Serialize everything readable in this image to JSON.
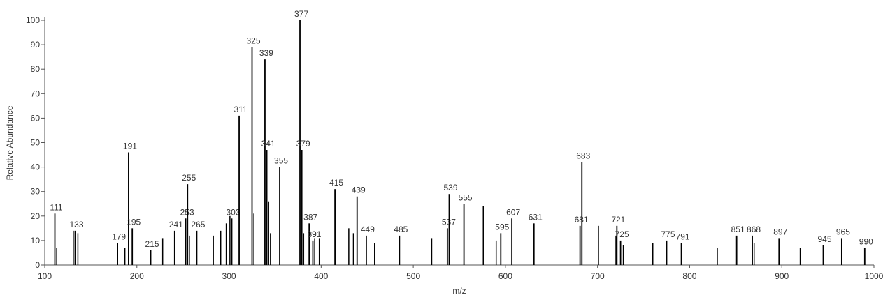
{
  "chart_data": {
    "type": "spectrum",
    "x_label": "m/z",
    "y_label": "Relative Abundance",
    "xlim": [
      100,
      1000
    ],
    "xticks": [
      100,
      200,
      300,
      400,
      500,
      600,
      700,
      800,
      900,
      1000
    ],
    "ylim": [
      0,
      100
    ],
    "yticks": [
      0,
      10,
      20,
      30,
      40,
      50,
      60,
      70,
      80,
      90,
      100
    ],
    "color": "#000000",
    "x": [
      111,
      133,
      179,
      191,
      195,
      215,
      241,
      253,
      255,
      265,
      303,
      311,
      325,
      339,
      341,
      355,
      377,
      379,
      387,
      391,
      415,
      439,
      449,
      485,
      537,
      539,
      555,
      595,
      607,
      631,
      681,
      683,
      721,
      725,
      775,
      791,
      851,
      868,
      897,
      945,
      965,
      990
    ],
    "values": [
      21,
      14,
      9,
      46,
      15,
      6,
      14,
      19,
      33,
      14,
      19,
      61,
      89,
      84,
      47,
      40,
      100,
      47,
      17,
      10,
      31,
      28,
      12,
      12,
      15,
      29,
      25,
      13,
      19,
      17,
      16,
      42,
      16,
      10,
      10,
      9,
      12,
      12,
      11,
      8,
      11,
      7
    ],
    "unlabeled_x": [
      113,
      131,
      136,
      187,
      228,
      257,
      283,
      291,
      297,
      301,
      327,
      343,
      345,
      381,
      393,
      398,
      430,
      435,
      458,
      520,
      576,
      590,
      701,
      720,
      728,
      760,
      830,
      870,
      920
    ],
    "unlabeled_values": [
      7,
      14,
      13,
      7,
      11,
      12,
      12,
      14,
      17,
      20,
      21,
      26,
      13,
      13,
      11,
      11,
      15,
      13,
      9,
      11,
      24,
      10,
      16,
      12,
      8,
      9,
      7,
      9,
      7
    ]
  }
}
